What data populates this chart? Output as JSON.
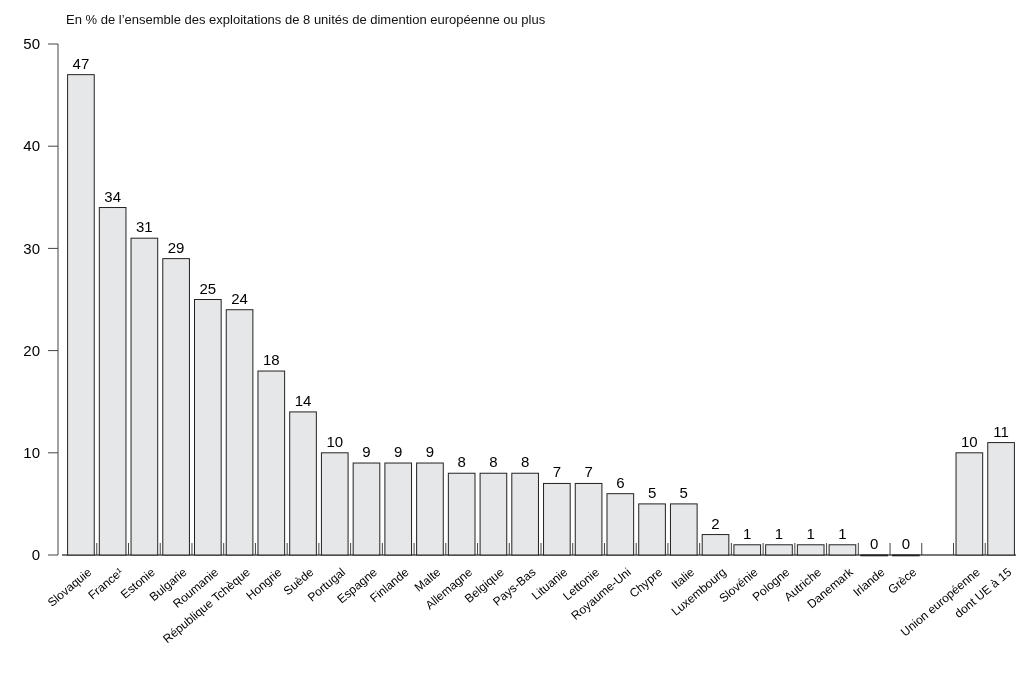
{
  "chart_data": {
    "type": "bar",
    "title": "En % de l’ensemble des exploitations de 8 unités de dimention européenne ou plus",
    "categories": [
      "Slovaquie",
      "France¹",
      "Estonie",
      "Bulgarie",
      "Roumanie",
      "République Tchèque",
      "Hongrie",
      "Suède",
      "Portugal",
      "Espagne",
      "Finlande",
      "Malte",
      "Allemagne",
      "Belgique",
      "Pays-Bas",
      "Lituanie",
      "Lettonie",
      "Royaume-Uni",
      "Chypre",
      "Italie",
      "Luxembourg",
      "Slovénie",
      "Pologne",
      "Autriche",
      "Danemark",
      "Irlande",
      "Grèce",
      null,
      "Union européenne",
      "dont UE à 15"
    ],
    "values": [
      47,
      34,
      31,
      29,
      25,
      24,
      18,
      14,
      10,
      9,
      9,
      9,
      8,
      8,
      8,
      7,
      7,
      6,
      5,
      5,
      2,
      1,
      1,
      1,
      1,
      0,
      0,
      null,
      10,
      11
    ],
    "color": "#e6e7e8",
    "ylim": [
      0,
      50
    ],
    "yticks": [
      0,
      10,
      20,
      30,
      40,
      50
    ],
    "data_labels": true,
    "grid": false
  }
}
